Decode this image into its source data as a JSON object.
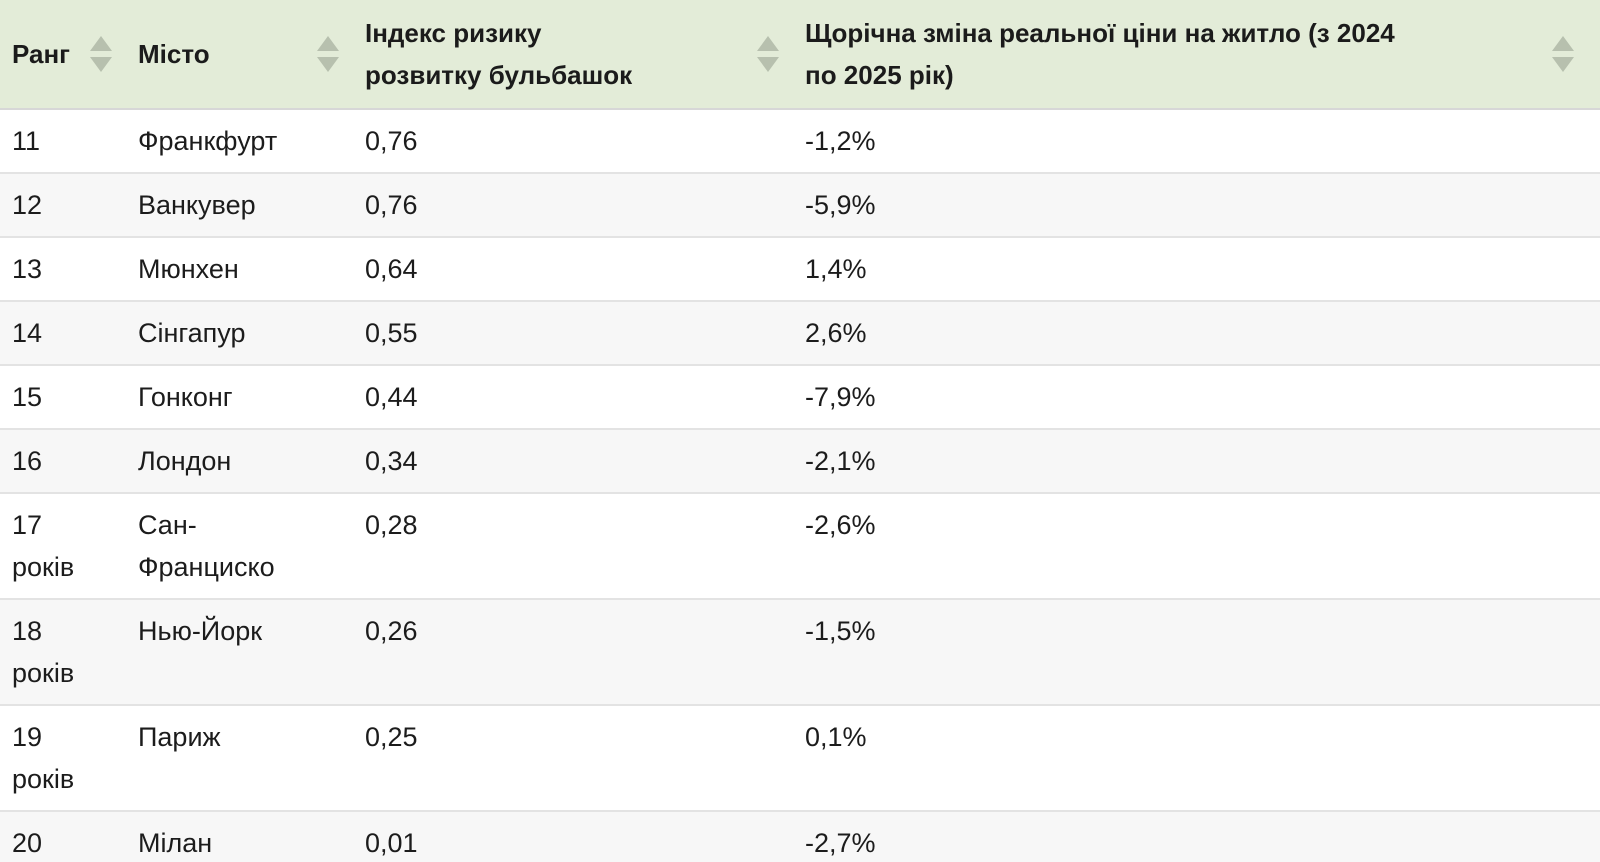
{
  "table": {
    "columns": [
      {
        "id": "rank",
        "label": "Ранг"
      },
      {
        "id": "city",
        "label": "Місто"
      },
      {
        "id": "index",
        "label": "Індекс ризику розвитку бульбашок"
      },
      {
        "id": "change",
        "label": "Щорічна зміна реальної ціни на житло (з 2024 по 2025 рік)"
      }
    ],
    "rows": [
      {
        "rank": "11",
        "city": "Франкфурт",
        "index": "0,76",
        "change": "-1,2%"
      },
      {
        "rank": "12",
        "city": "Ванкувер",
        "index": "0,76",
        "change": "-5,9%"
      },
      {
        "rank": "13",
        "city": "Мюнхен",
        "index": "0,64",
        "change": "1,4%"
      },
      {
        "rank": "14",
        "city": "Сінгапур",
        "index": "0,55",
        "change": "2,6%"
      },
      {
        "rank": "15",
        "city": "Гонконг",
        "index": "0,44",
        "change": "-7,9%"
      },
      {
        "rank": "16",
        "city": "Лондон",
        "index": "0,34",
        "change": "-2,1%"
      },
      {
        "rank": "17 років",
        "city": "Сан-Франциско",
        "index": "0,28",
        "change": "-2,6%"
      },
      {
        "rank": "18 років",
        "city": "Нью-Йорк",
        "index": "0,26",
        "change": "-1,5%"
      },
      {
        "rank": "19 років",
        "city": "Париж",
        "index": "0,25",
        "change": "0,1%"
      },
      {
        "rank": "20",
        "city": "Мілан",
        "index": "0,01",
        "change": "-2,7%"
      }
    ]
  },
  "icons": {
    "sort_ascending": "triangle-up",
    "sort_descending": "triangle-down"
  },
  "colors": {
    "header_bg": "#e3ecd8",
    "sort_arrow": "#b7c0ae",
    "row_alt_bg": "#f7f7f7",
    "divider": "#e3e3e3",
    "text": "#1c1c1c"
  }
}
